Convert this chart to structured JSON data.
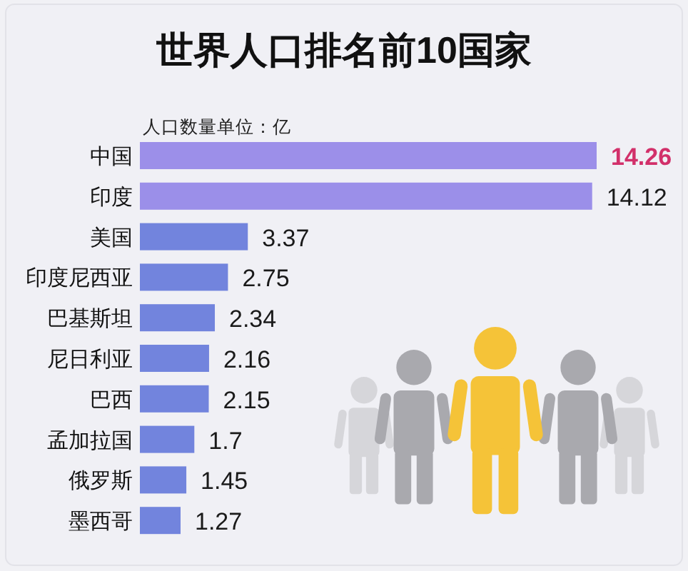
{
  "chart_data": {
    "type": "bar",
    "orientation": "horizontal",
    "title": "世界人口排名前10国家",
    "annotations": [
      "人口数量单位：亿"
    ],
    "categories": [
      "中国",
      "印度",
      "美国",
      "印度尼西亚",
      "巴基斯坦",
      "尼日利亚",
      "巴西",
      "孟加拉国",
      "俄罗斯",
      "墨西哥"
    ],
    "values": [
      14.26,
      14.12,
      3.37,
      2.75,
      2.34,
      2.16,
      2.15,
      1.7,
      1.45,
      1.27
    ],
    "colors": [
      "#9c8fe9",
      "#9b8fe9",
      "#7284dd",
      "#7284dd",
      "#7284dd",
      "#7284dd",
      "#7284dd",
      "#7284dd",
      "#7284dd",
      "#7284dd"
    ],
    "data_labels": true
  }
}
